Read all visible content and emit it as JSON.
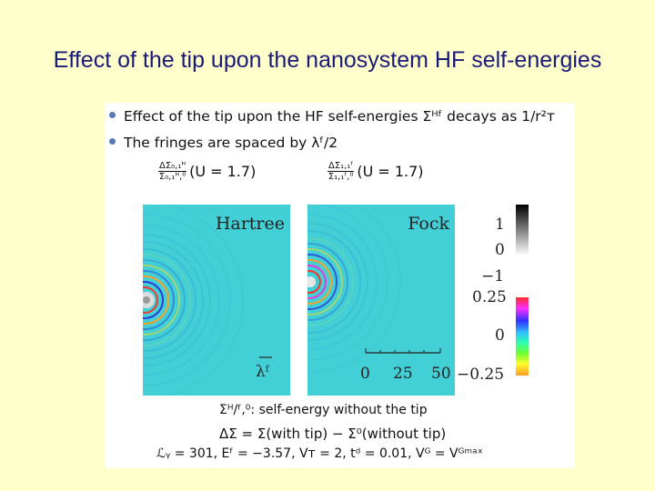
{
  "slide_title": "Effect of the tip upon the nanosystem HF self-energies",
  "bullets": [
    "Effect of the tip upon the HF self-energies Σᴴᶠ decays as 1/r²ᴛ",
    "The fringes are spaced by λᶠ/2"
  ],
  "labels": {
    "hartree_num": "ΔΣ₀,₁ᴴ",
    "hartree_den": "Σ₀,₁ᴴ,⁰",
    "hartree_rest": "(U = 1.7)",
    "fock_num": "ΔΣ₁,₁ᶠ",
    "fock_den": "Σ₁,₁ᶠ,⁰",
    "fock_rest": "(U = 1.7)"
  },
  "panels": {
    "hartree": "Hartree",
    "fock": "Fock",
    "lambda_label": "λᶠ",
    "scale_ticks": [
      "0",
      "25",
      "50"
    ]
  },
  "colorbars": {
    "gray_ticks": [
      "1",
      "0",
      "−1"
    ],
    "color_ticks": [
      "0.25",
      "0",
      "−0.25"
    ]
  },
  "bottom": [
    "Σᴴ/ᶠ,⁰: self-energy without the tip",
    "ΔΣ = Σ(with tip) − Σ⁰(without tip)",
    "ℒᵧ = 301, Eᶠ = −3.57, Vᴛ = 2, tᵈ = 0.01, Vᴳ = Vᴳᵐᵃˣ"
  ],
  "colors": {
    "background": "#ffffcc",
    "title": "#1a1a7a",
    "panel_fill": "#43cfd6",
    "bullet_dot": "#5a79b5"
  }
}
